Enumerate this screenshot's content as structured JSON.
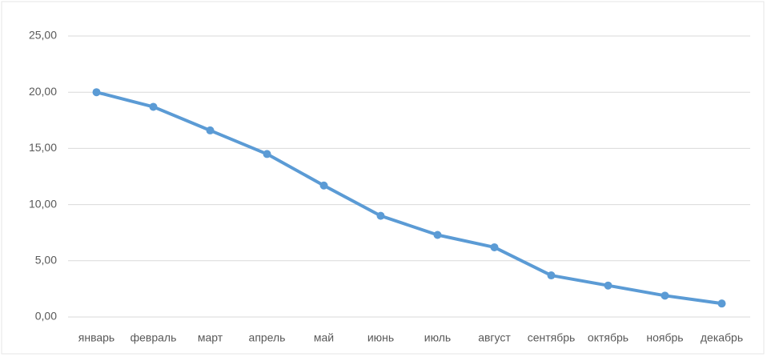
{
  "chart_data": {
    "type": "line",
    "categories": [
      "январь",
      "февраль",
      "март",
      "апрель",
      "май",
      "июнь",
      "июль",
      "август",
      "сентябрь",
      "октябрь",
      "ноябрь",
      "декабрь"
    ],
    "series": [
      {
        "color": "#5b9bd5",
        "values": [
          20.0,
          18.7,
          16.6,
          14.5,
          11.7,
          9.0,
          7.3,
          6.2,
          3.7,
          2.8,
          1.9,
          1.2
        ]
      }
    ],
    "ylim": [
      0,
      25
    ],
    "yticks": [
      {
        "value": 0,
        "label": "0,00"
      },
      {
        "value": 5,
        "label": "5,00"
      },
      {
        "value": 10,
        "label": "10,00"
      },
      {
        "value": 15,
        "label": "15,00"
      },
      {
        "value": 20,
        "label": "20,00"
      },
      {
        "value": 25,
        "label": "25,00"
      }
    ],
    "grid": true
  }
}
